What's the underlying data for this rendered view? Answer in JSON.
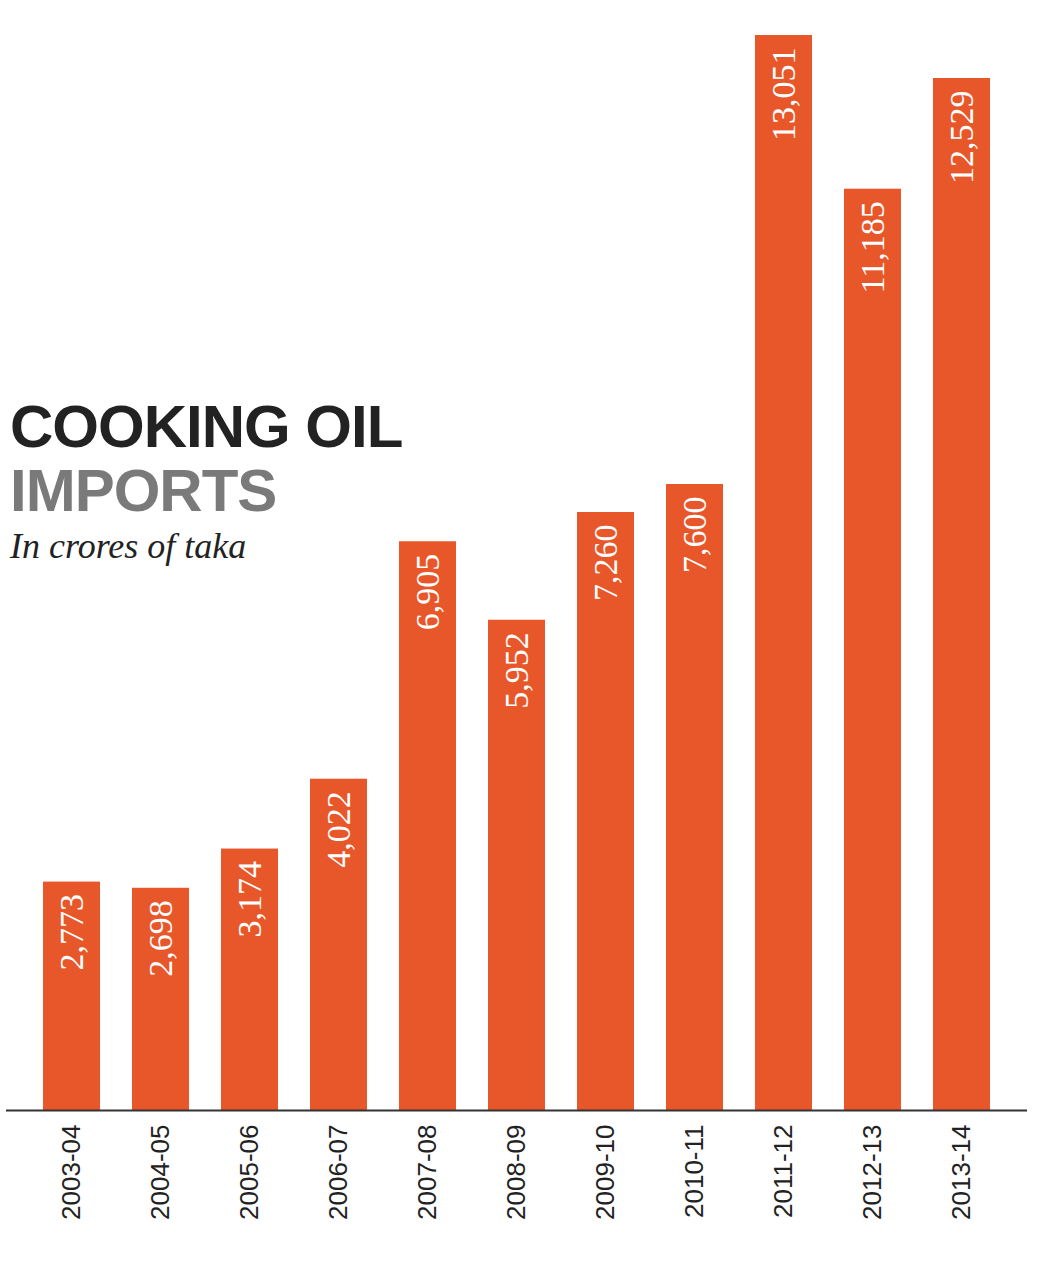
{
  "chart_data": {
    "type": "bar",
    "title": [
      "COOKING OIL",
      "IMPORTS"
    ],
    "subtitle": "In crores of taka",
    "categories": [
      "2003-04",
      "2004-05",
      "2005-06",
      "2006-07",
      "2007-08",
      "2008-09",
      "2009-10",
      "2010-11",
      "2011-12",
      "2012-13",
      "2013-14"
    ],
    "values": [
      2773,
      2698,
      3174,
      4022,
      6905,
      5952,
      7260,
      7600,
      13051,
      11185,
      12529
    ],
    "value_labels": [
      "2,773",
      "2,698",
      "3,174",
      "4,022",
      "6,905",
      "5,952",
      "7,260",
      "7,600",
      "13,051",
      "11,185",
      "12,529"
    ],
    "color": "#e8572a",
    "ylim": [
      0,
      13051
    ],
    "yticks": [],
    "grid": false,
    "data_labels": true,
    "tick_labels": "x"
  }
}
